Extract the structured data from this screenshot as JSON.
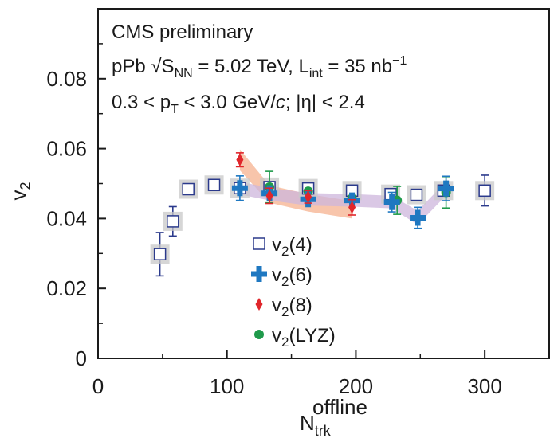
{
  "chart_data": {
    "type": "scatter",
    "title": "",
    "annotations": [
      "CMS preliminary",
      "pPb √S_NN = 5.02 TeV, L_int = 35 nb⁻¹",
      "0.3 < p_T < 3.0 GeV/c; |η| < 2.4"
    ],
    "ann_line1": "CMS preliminary",
    "ann_line2": {
      "a": "pPb ",
      "sqrt": "√",
      "s": "S",
      "nn": "NN",
      "b": " = 5.02 TeV, L",
      "int": "int",
      "c": " = 35 nb",
      "exp": "−1"
    },
    "ann_line3": {
      "a": "0.3 < p",
      "t": "T",
      "b": " < 3.0 GeV/",
      "c": "c",
      "d": "; ",
      "eta": "|η|",
      "e": " < 2.4"
    },
    "xlabel": {
      "base": "N",
      "sub": "trk",
      "sup": "offline"
    },
    "ylabel": {
      "base": "v",
      "sub": "2"
    },
    "xlim": [
      0,
      350
    ],
    "ylim": [
      0,
      0.1
    ],
    "xticks": [
      0,
      100,
      200,
      300
    ],
    "xtick_labels": [
      "0",
      "100",
      "200",
      "300"
    ],
    "yticks": [
      0,
      0.02,
      0.04,
      0.06,
      0.08
    ],
    "ytick_labels": [
      "0",
      "0.02",
      "0.04",
      "0.06",
      "0.08"
    ],
    "legend_position": "center",
    "series": [
      {
        "name": "v2(4)",
        "label_base": "v",
        "label_sub": "2",
        "label_rest": "(4)",
        "marker": "open-square",
        "color": "#2b3a8c",
        "points": [
          {
            "x": 48,
            "y": 0.0298,
            "err": 0.0062
          },
          {
            "x": 58,
            "y": 0.0392,
            "err": 0.0042
          },
          {
            "x": 70,
            "y": 0.0484,
            "err": 0.0
          },
          {
            "x": 90,
            "y": 0.0496,
            "err": 0.0
          },
          {
            "x": 110,
            "y": 0.0487,
            "err": 0.0
          },
          {
            "x": 133,
            "y": 0.049,
            "err": 0.0
          },
          {
            "x": 163,
            "y": 0.0486,
            "err": 0.0
          },
          {
            "x": 197,
            "y": 0.048,
            "err": 0.0
          },
          {
            "x": 227,
            "y": 0.047,
            "err": 0.0
          },
          {
            "x": 247,
            "y": 0.0468,
            "err": 0.0
          },
          {
            "x": 268,
            "y": 0.048,
            "err": 0.0
          },
          {
            "x": 300,
            "y": 0.048,
            "err": 0.0044
          }
        ]
      },
      {
        "name": "v2(6)",
        "label_base": "v",
        "label_sub": "2",
        "label_rest": "(6)",
        "marker": "plus",
        "color": "#1f78c1",
        "points": [
          {
            "x": 110,
            "y": 0.0487,
            "err": 0.0035
          },
          {
            "x": 133,
            "y": 0.0472,
            "err": 0.0
          },
          {
            "x": 163,
            "y": 0.0455,
            "err": 0.0
          },
          {
            "x": 197,
            "y": 0.0452,
            "err": 0.0
          },
          {
            "x": 228,
            "y": 0.0447,
            "err": 0.0028
          },
          {
            "x": 248,
            "y": 0.0402,
            "err": 0.003
          },
          {
            "x": 270,
            "y": 0.0486,
            "err": 0.0035
          }
        ]
      },
      {
        "name": "v2(8)",
        "label_base": "v",
        "label_sub": "2",
        "label_rest": "(8)",
        "marker": "diamond",
        "color": "#e0262b",
        "points": [
          {
            "x": 110,
            "y": 0.0568,
            "err": 0.002
          },
          {
            "x": 133,
            "y": 0.0465,
            "err": 0.0022
          },
          {
            "x": 163,
            "y": 0.0462,
            "err": 0.0018
          },
          {
            "x": 197,
            "y": 0.0432,
            "err": 0.0022
          }
        ]
      },
      {
        "name": "v2(LYZ)",
        "label_base": "v",
        "label_sub": "2",
        "label_rest": "(LYZ)",
        "marker": "circle",
        "color": "#1f9a4b",
        "points": [
          {
            "x": 133,
            "y": 0.049,
            "err": 0.0045
          },
          {
            "x": 163,
            "y": 0.0478,
            "err": 0.0
          },
          {
            "x": 197,
            "y": 0.0458,
            "err": 0.0
          },
          {
            "x": 232,
            "y": 0.0452,
            "err": 0.004
          },
          {
            "x": 270,
            "y": 0.0475,
            "err": 0.0045
          }
        ]
      }
    ],
    "bands": [
      {
        "name": "v2(8) systematic band",
        "color": "#f6b28f",
        "points": [
          [
            110,
            0.0568,
            0.003
          ],
          [
            133,
            0.047,
            0.0025
          ],
          [
            163,
            0.0445,
            0.0025
          ],
          [
            197,
            0.0425,
            0.0025
          ]
        ]
      },
      {
        "name": "v2(6) systematic band",
        "color": "#cdb6dc",
        "points": [
          [
            110,
            0.0487,
            0.0018
          ],
          [
            133,
            0.047,
            0.0018
          ],
          [
            163,
            0.0455,
            0.0018
          ],
          [
            197,
            0.0452,
            0.0018
          ],
          [
            228,
            0.0447,
            0.0018
          ],
          [
            248,
            0.0402,
            0.002
          ],
          [
            270,
            0.0486,
            0.002
          ]
        ]
      }
    ]
  }
}
